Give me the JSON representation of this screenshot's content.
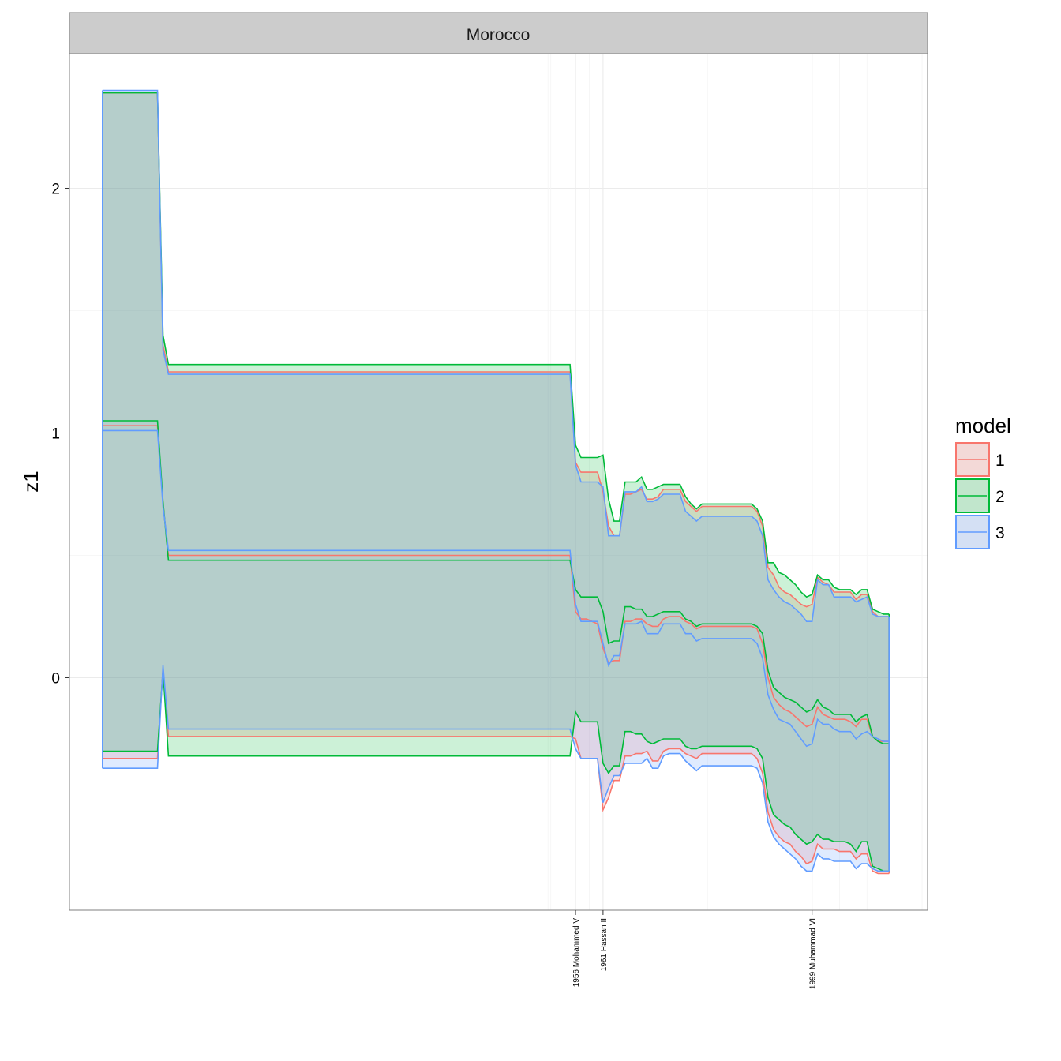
{
  "chart_data": {
    "type": "area",
    "facet_title": "Morocco",
    "ylabel": "z1",
    "xlabel": "",
    "ylim": [
      -0.95,
      2.55
    ],
    "xlim": [
      1864,
      2020
    ],
    "yticks": [
      0,
      1,
      2
    ],
    "grid": true,
    "legend": {
      "title": "model",
      "position": "right",
      "entries": [
        "1",
        "2",
        "3"
      ]
    },
    "x_annotations": [
      {
        "x": 1956,
        "label": "1956 Mohammed V"
      },
      {
        "x": 1961,
        "label": "1961 Hassan II"
      },
      {
        "x": 1999,
        "label": "1999 Muhammad VI"
      }
    ],
    "x": [
      1870,
      1880,
      1881,
      1882,
      1955,
      1956,
      1957,
      1958,
      1960,
      1961,
      1962,
      1963,
      1964,
      1965,
      1966,
      1967,
      1968,
      1969,
      1970,
      1971,
      1972,
      1973,
      1974,
      1975,
      1976,
      1977,
      1978,
      1979,
      1980,
      1981,
      1982,
      1983,
      1984,
      1985,
      1986,
      1987,
      1988,
      1989,
      1990,
      1991,
      1992,
      1993,
      1994,
      1995,
      1996,
      1997,
      1998,
      1999,
      2000,
      2001,
      2002,
      2003,
      2004,
      2005,
      2006,
      2007,
      2008,
      2009,
      2010,
      2011,
      2012,
      2013
    ],
    "series": [
      {
        "name": "1",
        "color": "#F8766D",
        "mean": [
          1.03,
          1.03,
          0.71,
          0.5,
          0.5,
          0.27,
          0.24,
          0.24,
          0.22,
          0.12,
          0.06,
          0.07,
          0.07,
          0.23,
          0.23,
          0.24,
          0.24,
          0.22,
          0.21,
          0.21,
          0.24,
          0.25,
          0.25,
          0.25,
          0.23,
          0.22,
          0.2,
          0.21,
          0.21,
          0.21,
          0.21,
          0.21,
          0.21,
          0.21,
          0.21,
          0.21,
          0.21,
          0.2,
          0.14,
          0.0,
          -0.08,
          -0.11,
          -0.13,
          -0.14,
          -0.16,
          -0.18,
          -0.2,
          -0.19,
          -0.12,
          -0.15,
          -0.16,
          -0.17,
          -0.17,
          -0.17,
          -0.18,
          -0.2,
          -0.17,
          -0.17,
          -0.24,
          -0.26,
          -0.26,
          -0.26
        ],
        "upper": [
          2.39,
          2.39,
          1.36,
          1.25,
          1.25,
          0.88,
          0.84,
          0.84,
          0.84,
          0.76,
          0.62,
          0.58,
          0.58,
          0.75,
          0.75,
          0.76,
          0.77,
          0.73,
          0.73,
          0.74,
          0.77,
          0.77,
          0.77,
          0.77,
          0.72,
          0.7,
          0.68,
          0.7,
          0.7,
          0.7,
          0.7,
          0.7,
          0.7,
          0.7,
          0.7,
          0.7,
          0.7,
          0.68,
          0.62,
          0.45,
          0.42,
          0.37,
          0.35,
          0.34,
          0.32,
          0.3,
          0.29,
          0.3,
          0.41,
          0.39,
          0.38,
          0.35,
          0.35,
          0.35,
          0.35,
          0.32,
          0.34,
          0.34,
          0.27,
          0.25,
          0.25,
          0.25
        ],
        "lower": [
          -0.33,
          -0.33,
          0.04,
          -0.24,
          -0.24,
          -0.25,
          -0.33,
          -0.33,
          -0.33,
          -0.54,
          -0.49,
          -0.42,
          -0.42,
          -0.32,
          -0.32,
          -0.31,
          -0.31,
          -0.3,
          -0.34,
          -0.34,
          -0.3,
          -0.29,
          -0.29,
          -0.29,
          -0.31,
          -0.32,
          -0.33,
          -0.31,
          -0.31,
          -0.31,
          -0.31,
          -0.31,
          -0.31,
          -0.31,
          -0.31,
          -0.31,
          -0.31,
          -0.33,
          -0.39,
          -0.55,
          -0.62,
          -0.65,
          -0.67,
          -0.68,
          -0.71,
          -0.73,
          -0.76,
          -0.75,
          -0.68,
          -0.7,
          -0.7,
          -0.7,
          -0.71,
          -0.71,
          -0.71,
          -0.74,
          -0.72,
          -0.72,
          -0.79,
          -0.8,
          -0.8,
          -0.8
        ]
      },
      {
        "name": "2",
        "color": "#00BA38",
        "mean": [
          1.05,
          1.05,
          0.72,
          0.48,
          0.48,
          0.36,
          0.33,
          0.33,
          0.33,
          0.27,
          0.14,
          0.15,
          0.15,
          0.29,
          0.29,
          0.28,
          0.28,
          0.25,
          0.25,
          0.26,
          0.27,
          0.27,
          0.27,
          0.27,
          0.24,
          0.23,
          0.21,
          0.22,
          0.22,
          0.22,
          0.22,
          0.22,
          0.22,
          0.22,
          0.22,
          0.22,
          0.22,
          0.21,
          0.18,
          0.03,
          -0.04,
          -0.06,
          -0.08,
          -0.09,
          -0.1,
          -0.12,
          -0.14,
          -0.13,
          -0.09,
          -0.12,
          -0.13,
          -0.15,
          -0.15,
          -0.15,
          -0.15,
          -0.18,
          -0.16,
          -0.15,
          -0.24,
          -0.26,
          -0.27,
          -0.27
        ],
        "upper": [
          2.39,
          2.39,
          1.4,
          1.28,
          1.28,
          0.95,
          0.9,
          0.9,
          0.9,
          0.91,
          0.73,
          0.64,
          0.64,
          0.8,
          0.8,
          0.8,
          0.82,
          0.77,
          0.77,
          0.78,
          0.79,
          0.79,
          0.79,
          0.79,
          0.74,
          0.71,
          0.69,
          0.71,
          0.71,
          0.71,
          0.71,
          0.71,
          0.71,
          0.71,
          0.71,
          0.71,
          0.71,
          0.69,
          0.64,
          0.47,
          0.47,
          0.43,
          0.42,
          0.4,
          0.38,
          0.35,
          0.33,
          0.34,
          0.42,
          0.4,
          0.4,
          0.37,
          0.36,
          0.36,
          0.36,
          0.34,
          0.36,
          0.36,
          0.28,
          0.27,
          0.26,
          0.26
        ],
        "lower": [
          -0.3,
          -0.3,
          0.03,
          -0.32,
          -0.32,
          -0.14,
          -0.18,
          -0.18,
          -0.18,
          -0.35,
          -0.39,
          -0.36,
          -0.36,
          -0.22,
          -0.22,
          -0.23,
          -0.23,
          -0.26,
          -0.27,
          -0.26,
          -0.25,
          -0.25,
          -0.25,
          -0.25,
          -0.28,
          -0.29,
          -0.29,
          -0.28,
          -0.28,
          -0.28,
          -0.28,
          -0.28,
          -0.28,
          -0.28,
          -0.28,
          -0.28,
          -0.28,
          -0.29,
          -0.33,
          -0.49,
          -0.56,
          -0.58,
          -0.6,
          -0.61,
          -0.64,
          -0.66,
          -0.68,
          -0.67,
          -0.64,
          -0.66,
          -0.66,
          -0.67,
          -0.67,
          -0.67,
          -0.68,
          -0.71,
          -0.67,
          -0.67,
          -0.77,
          -0.78,
          -0.79,
          -0.79
        ]
      },
      {
        "name": "3",
        "color": "#619CFF",
        "mean": [
          1.01,
          1.01,
          0.7,
          0.52,
          0.52,
          0.3,
          0.23,
          0.23,
          0.23,
          0.14,
          0.05,
          0.09,
          0.09,
          0.22,
          0.22,
          0.22,
          0.23,
          0.18,
          0.18,
          0.18,
          0.22,
          0.22,
          0.22,
          0.22,
          0.18,
          0.18,
          0.15,
          0.16,
          0.16,
          0.16,
          0.16,
          0.16,
          0.16,
          0.16,
          0.16,
          0.16,
          0.16,
          0.14,
          0.08,
          -0.07,
          -0.13,
          -0.17,
          -0.18,
          -0.19,
          -0.22,
          -0.25,
          -0.28,
          -0.27,
          -0.17,
          -0.19,
          -0.19,
          -0.21,
          -0.22,
          -0.22,
          -0.22,
          -0.25,
          -0.23,
          -0.22,
          -0.24,
          -0.25,
          -0.26,
          -0.26
        ],
        "upper": [
          2.4,
          2.4,
          1.34,
          1.24,
          1.24,
          0.87,
          0.8,
          0.8,
          0.8,
          0.78,
          0.58,
          0.58,
          0.58,
          0.76,
          0.76,
          0.76,
          0.78,
          0.72,
          0.72,
          0.73,
          0.75,
          0.75,
          0.75,
          0.75,
          0.68,
          0.66,
          0.64,
          0.66,
          0.66,
          0.66,
          0.66,
          0.66,
          0.66,
          0.66,
          0.66,
          0.66,
          0.66,
          0.64,
          0.58,
          0.4,
          0.36,
          0.33,
          0.31,
          0.3,
          0.28,
          0.26,
          0.23,
          0.23,
          0.4,
          0.38,
          0.38,
          0.33,
          0.33,
          0.33,
          0.33,
          0.31,
          0.32,
          0.33,
          0.26,
          0.25,
          0.25,
          0.25
        ],
        "lower": [
          -0.37,
          -0.37,
          0.05,
          -0.21,
          -0.21,
          -0.29,
          -0.33,
          -0.33,
          -0.33,
          -0.51,
          -0.45,
          -0.4,
          -0.4,
          -0.35,
          -0.35,
          -0.35,
          -0.35,
          -0.33,
          -0.37,
          -0.37,
          -0.32,
          -0.31,
          -0.31,
          -0.31,
          -0.34,
          -0.36,
          -0.38,
          -0.36,
          -0.36,
          -0.36,
          -0.36,
          -0.36,
          -0.36,
          -0.36,
          -0.36,
          -0.36,
          -0.36,
          -0.37,
          -0.43,
          -0.59,
          -0.65,
          -0.68,
          -0.7,
          -0.72,
          -0.74,
          -0.77,
          -0.79,
          -0.79,
          -0.72,
          -0.74,
          -0.74,
          -0.75,
          -0.75,
          -0.75,
          -0.75,
          -0.78,
          -0.76,
          -0.76,
          -0.78,
          -0.79,
          -0.79,
          -0.79
        ]
      }
    ]
  }
}
